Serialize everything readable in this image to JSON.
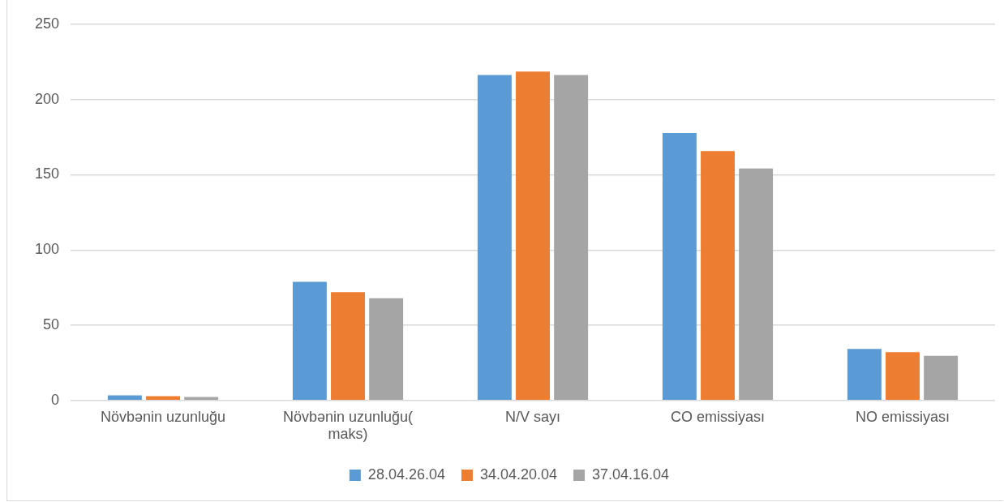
{
  "chart_data": {
    "type": "bar",
    "categories": [
      "Növbənin uzunluğu",
      "Növbənin uzunluğu( maks)",
      "N/V sayı",
      "CO emissiyası",
      "NO emissiyası"
    ],
    "series": [
      {
        "name": "28.04.26.04",
        "color": "#5b9bd5",
        "values": [
          3.4,
          78.9,
          216.3,
          177.8,
          34.2
        ]
      },
      {
        "name": "34.04.20.04",
        "color": "#ed7d31",
        "values": [
          2.8,
          72,
          218.6,
          165.8,
          32.1
        ]
      },
      {
        "name": "37.04.16.04",
        "color": "#a5a5a5",
        "values": [
          2.3,
          67.9,
          216.3,
          154.2,
          29.7
        ]
      }
    ],
    "ylim": [
      0,
      250
    ],
    "yticks": [
      0,
      50,
      100,
      150,
      200,
      250
    ],
    "grid": "y",
    "legend": "bottom"
  }
}
